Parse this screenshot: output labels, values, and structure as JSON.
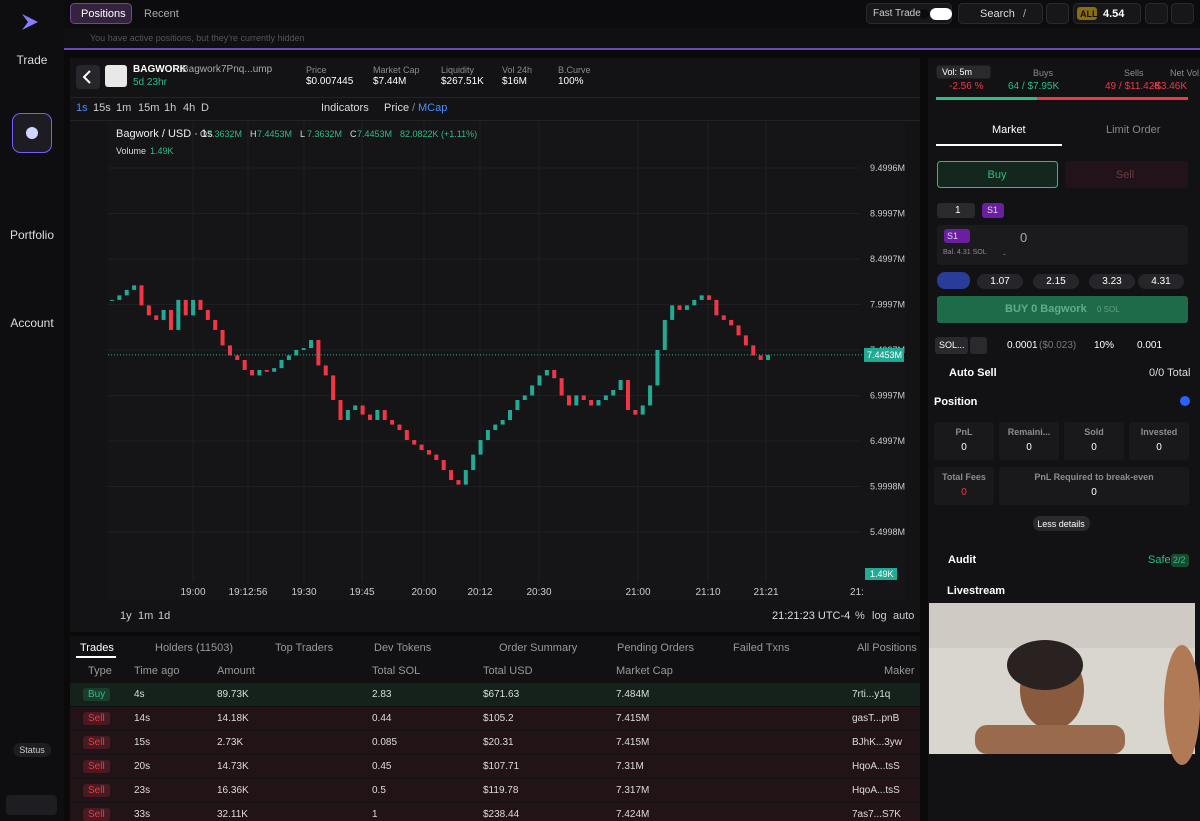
{
  "sidebar": {
    "nav": [
      "Trade",
      "Portfolio",
      "Account"
    ],
    "status": "Status"
  },
  "topbar": {
    "tabs": [
      "Positions",
      "Recent"
    ],
    "fast_trade": "Fast Trade",
    "search": "Search",
    "shortcut": "/",
    "wallet_label": "ALL",
    "balance": "4.54"
  },
  "notice": "You have active positions, but they're currently hidden",
  "token": {
    "symbol": "BAGWORK",
    "name": "Bagwork",
    "address": "7Pnq...ump",
    "age": "5d 23hr",
    "stats": [
      {
        "label": "Price",
        "value": "$0.007445"
      },
      {
        "label": "Market Cap",
        "value": "$7.44M"
      },
      {
        "label": "Liquidity",
        "value": "$267.51K"
      },
      {
        "label": "Vol 24h",
        "value": "$16M"
      },
      {
        "label": "B.Curve",
        "value": "100%"
      }
    ]
  },
  "toolbar": {
    "intervals": [
      "1s",
      "15s",
      "1m",
      "15m",
      "1h",
      "4h",
      "D"
    ],
    "indicators": "Indicators",
    "price": "Price",
    "separator": "/",
    "mcap": "MCap"
  },
  "chart_data": {
    "type": "candlestick",
    "title": "Bagwork / USD · 1s",
    "ohlc": [
      {
        "key": "O",
        "value": "7.3632M"
      },
      {
        "key": "H",
        "value": "7.4453M"
      },
      {
        "key": "L",
        "value": "7.3632M"
      },
      {
        "key": "C",
        "value": "7.4453M"
      }
    ],
    "change": "82.0822K (+1.11%)",
    "volume_label": "Volume",
    "volume": "1.49K",
    "last_price": {
      "value": 7445300,
      "label": "7.4453M"
    },
    "up_color": "#22ab94",
    "down_color": "#f23645",
    "values": [
      8050000,
      8100000,
      8160000,
      8210000,
      7990000,
      7880000,
      7830000,
      7940000,
      7720000,
      8050000,
      7880000,
      8050000,
      7940000,
      7830000,
      7720000,
      7550000,
      7440000,
      7390000,
      7280000,
      7220000,
      7280000,
      7260000,
      7300000,
      7390000,
      7440000,
      7500000,
      7520000,
      7610000,
      7330000,
      7220000,
      6950000,
      6730000,
      6840000,
      6890000,
      6790000,
      6730000,
      6840000,
      6730000,
      6680000,
      6620000,
      6510000,
      6460000,
      6400000,
      6350000,
      6290000,
      6180000,
      6070000,
      6020000,
      6180000,
      6350000,
      6510000,
      6620000,
      6680000,
      6730000,
      6840000,
      6950000,
      7000000,
      7110000,
      7220000,
      7280000,
      7190000,
      7000000,
      6890000,
      7000000,
      6950000,
      6890000,
      6950000,
      7000000,
      7060000,
      7170000,
      6840000,
      6790000,
      6890000,
      7110000,
      7500000,
      7830000,
      7990000,
      7940000,
      7990000,
      8050000,
      8100000,
      8050000,
      7880000,
      7830000,
      7770000,
      7660000,
      7550000,
      7440000,
      7390000,
      7445300
    ],
    "ylim": [
      4950000,
      10005000
    ],
    "yticks": [
      {
        "value": 9499600,
        "label": "9.4996M"
      },
      {
        "value": 8999700,
        "label": "8.9997M"
      },
      {
        "value": 8499700,
        "label": "8.4997M"
      },
      {
        "value": 7999700,
        "label": "7.9997M"
      },
      {
        "value": 7499700,
        "label": "7.4997M"
      },
      {
        "value": 6999700,
        "label": "6.9997M"
      },
      {
        "value": 6499700,
        "label": "6.4997M"
      },
      {
        "value": 5999800,
        "label": "5.9998M"
      },
      {
        "value": 5499800,
        "label": "5.4998M"
      }
    ],
    "x_labels": [
      "19:00",
      "19:12:56",
      "19:30",
      "19:45",
      "20:00",
      "20:12",
      "20:30",
      "21:00",
      "21:10",
      "21:21",
      "21:"
    ],
    "grid": true
  },
  "chart_footer": {
    "ranges": [
      "1y",
      "1m",
      "1d"
    ],
    "clock": "21:21:23 UTC-4",
    "options": [
      "%",
      "log",
      "auto"
    ]
  },
  "trades": {
    "tabs": [
      "Trades",
      "Holders (11503)",
      "Top Traders",
      "Dev Tokens",
      "Order Summary",
      "Pending Orders",
      "Failed Txns",
      "All Positions"
    ],
    "columns": [
      "Type",
      "Time ago",
      "Amount",
      "Total SOL",
      "Total USD",
      "Market Cap",
      "Maker"
    ],
    "rows": [
      [
        "Buy",
        "4s",
        "89.73K",
        "2.83",
        "$671.63",
        "7.484M",
        "7rti...y1q"
      ],
      [
        "Sell",
        "14s",
        "14.18K",
        "0.44",
        "$105.2",
        "7.415M",
        "gasT...pnB"
      ],
      [
        "Sell",
        "15s",
        "2.73K",
        "0.085",
        "$20.31",
        "7.415M",
        "BJhK...3yw"
      ],
      [
        "Sell",
        "20s",
        "14.73K",
        "0.45",
        "$107.71",
        "7.31M",
        "HqoA...tsS"
      ],
      [
        "Sell",
        "23s",
        "16.36K",
        "0.5",
        "$119.78",
        "7.317M",
        "HqoA...tsS"
      ],
      [
        "Sell",
        "33s",
        "32.11K",
        "1",
        "$238.44",
        "7.424M",
        "7as7...S7K"
      ]
    ]
  },
  "side": {
    "vol_period": "Vol: 5m",
    "vol_change": "-2.56 %",
    "flow": [
      {
        "label": "Buys",
        "value": "64 / $7.95K"
      },
      {
        "label": "Sells",
        "value": "49 / $11.42K"
      },
      {
        "label": "Net Vol.",
        "value": "-$3.46K"
      }
    ],
    "order_tabs": [
      "Market",
      "Limit Order"
    ],
    "sides": [
      "Buy",
      "Sell"
    ],
    "preset": "1",
    "preset_tag": "S1",
    "wallet_tag": "S1",
    "balance": "Bal. 4.31 SOL",
    "amount": "0",
    "amount_usd": "-",
    "quick": [
      "1.07",
      "2.15",
      "3.23",
      "4.31"
    ],
    "submit": "BUY 0 Bagwork",
    "submit_sol": "0 SOL",
    "settings": {
      "currency": "SOL...",
      "fee": "0.0001",
      "fee_usd": "($0.023)",
      "slippage": "10%",
      "tip": "0.001"
    },
    "auto_sell": "Auto Sell",
    "auto_sell_total": "0/0 Total",
    "position": "Position",
    "position_stats": [
      {
        "label": "PnL",
        "value": "0"
      },
      {
        "label": "Remaini...",
        "value": "0"
      },
      {
        "label": "Sold",
        "value": "0"
      },
      {
        "label": "Invested",
        "value": "0"
      },
      {
        "label": "Total Fees",
        "value": "0"
      },
      {
        "label": "PnL Required to break-even",
        "value": "0"
      }
    ],
    "less": "Less details",
    "audit": "Audit",
    "safe": "Safe",
    "safe_count": "2/2",
    "livestream": "Livestream"
  }
}
